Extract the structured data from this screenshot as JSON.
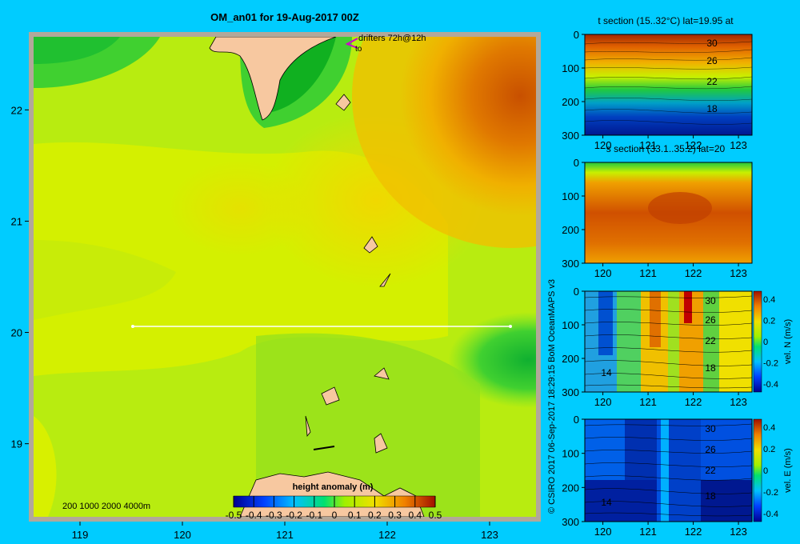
{
  "main_title": "OM_an01 for 19-Aug-2017 00Z",
  "credit": "© CSIRO 2017   06-Sep-2017 18:29:15 BoM OceanMAPS v3",
  "colors": {
    "background": "#00ccff",
    "land": "#f7c8a0",
    "coast_grey": "#b2a89a"
  },
  "map": {
    "drifter_label": "drifters 72h@12h",
    "drifter_to": "to",
    "depth_legend": "200  1000  2000  4000m",
    "colorbar_title": "height anomaly  (m)",
    "colorbar_ticks": [
      "-0.5",
      "-0.4",
      "-0.3",
      "-0.2",
      "-0.1",
      "0",
      "0.1",
      "0.2",
      "0.3",
      "0.4",
      "0.5"
    ],
    "x_ticks": [
      "119",
      "120",
      "121",
      "122",
      "123"
    ],
    "y_ticks": [
      "22",
      "21",
      "20",
      "19"
    ]
  },
  "chart_data": [
    {
      "type": "heatmap",
      "title": "OM_an01 for 19-Aug-2017 00Z",
      "variable": "height anomaly (m)",
      "xlim": [
        118.5,
        123.5
      ],
      "ylim": [
        18.3,
        22.7
      ],
      "clim": [
        -0.5,
        0.5
      ],
      "section_line": {
        "lat": 20.0,
        "lon": [
          119.5,
          123.2
        ]
      },
      "features": [
        {
          "lon": 123.0,
          "lat": 22.3,
          "value": 0.45
        },
        {
          "lon": 122.7,
          "lat": 21.6,
          "value": 0.35
        },
        {
          "lon": 121.3,
          "lat": 22.5,
          "value": -0.05
        },
        {
          "lon": 119.0,
          "lat": 22.4,
          "value": 0.0
        },
        {
          "lon": 123.2,
          "lat": 19.7,
          "value": -0.05
        },
        {
          "lon": 121.5,
          "lat": 20.9,
          "value": 0.25
        },
        {
          "lon": 120.0,
          "lat": 20.6,
          "value": 0.2
        }
      ]
    },
    {
      "type": "heatmap",
      "title": "t section (15..32°C) lat=19.95 at",
      "variable": "temperature",
      "xlim": [
        119.6,
        123.3
      ],
      "ylim": [
        0,
        300
      ],
      "x_ticks": [
        "120",
        "121",
        "122",
        "123"
      ],
      "y_ticks": [
        "0",
        "100",
        "200",
        "300"
      ],
      "contour_labels": [
        "30",
        "26",
        "22",
        "18"
      ]
    },
    {
      "type": "heatmap",
      "title": "s section (33.1..35.2) lat=20",
      "variable": "salinity",
      "xlim": [
        119.6,
        123.3
      ],
      "ylim": [
        0,
        300
      ],
      "x_ticks": [
        "120",
        "121",
        "122",
        "123"
      ],
      "y_ticks": [
        "0",
        "100",
        "200",
        "300"
      ]
    },
    {
      "type": "heatmap",
      "title": "",
      "variable": "vel. N (m/s)",
      "xlim": [
        119.6,
        123.3
      ],
      "ylim": [
        0,
        300
      ],
      "clim": [
        -0.4,
        0.4
      ],
      "x_ticks": [
        "120",
        "121",
        "122",
        "123"
      ],
      "y_ticks": [
        "0",
        "100",
        "200",
        "300"
      ],
      "contour_labels": [
        "30",
        "26",
        "22",
        "18",
        "14"
      ],
      "colorbar_ticks": [
        "0.4",
        "0.2",
        "0",
        "-0.2",
        "-0.4"
      ],
      "colorbar_label": "vel. N (m/s)"
    },
    {
      "type": "heatmap",
      "title": "",
      "variable": "vel. E (m/s)",
      "xlim": [
        119.6,
        123.3
      ],
      "ylim": [
        0,
        300
      ],
      "clim": [
        -0.4,
        0.4
      ],
      "x_ticks": [
        "120",
        "121",
        "122",
        "123"
      ],
      "y_ticks": [
        "0",
        "100",
        "200",
        "300"
      ],
      "contour_labels": [
        "30",
        "26",
        "22",
        "18",
        "14"
      ],
      "colorbar_ticks": [
        "0.4",
        "0.2",
        "0",
        "-0.2",
        "-0.4"
      ],
      "colorbar_label": "vel. E (m/s)"
    }
  ]
}
